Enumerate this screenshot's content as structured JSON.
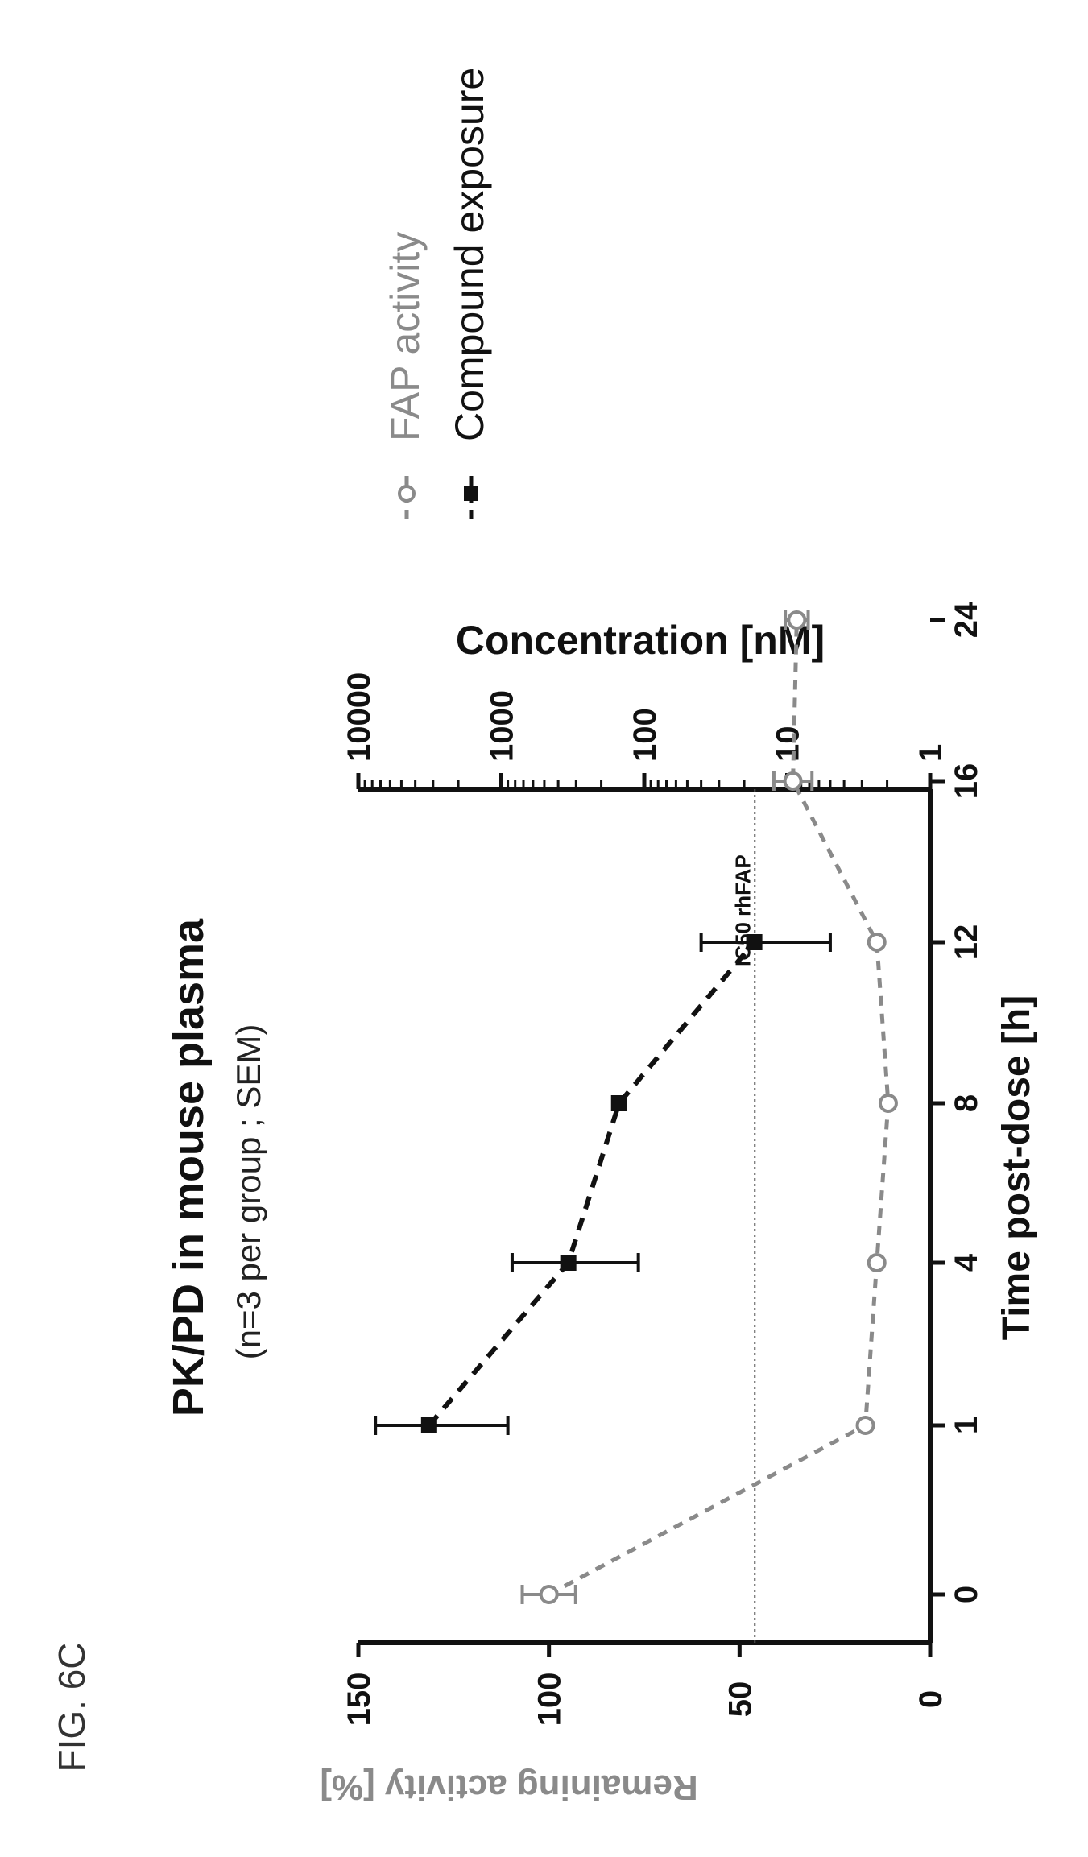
{
  "figure_label": "FIG. 6C",
  "chart_data": {
    "type": "line",
    "title": "PK/PD in mouse plasma",
    "subtitle": "(n=3 per group ; SEM)",
    "xlabel": "Time post-dose [h]",
    "ylabel_left": "Remaining activity [%]",
    "ylabel_right": "Concentration [nM]",
    "x": [
      "0",
      "1",
      "4",
      "8",
      "12",
      "16",
      "24"
    ],
    "x_axis_type": "categorical",
    "ylim_left": [
      0,
      150
    ],
    "yticks_left": [
      "0",
      "50",
      "100",
      "150"
    ],
    "ylim_right": [
      1,
      10000
    ],
    "yticks_right": [
      "1",
      "10",
      "100",
      "1000",
      "10000"
    ],
    "right_axis_scale": "log",
    "grid": false,
    "legend_position": "right",
    "series": [
      {
        "name": "FAP activity",
        "axis": "left",
        "color": "#8a8a8a",
        "marker": "open-circle",
        "x": [
          "0",
          "1",
          "4",
          "8",
          "12",
          "16",
          "24"
        ],
        "values": [
          100,
          17,
          14,
          11,
          14,
          36,
          35
        ],
        "error": [
          7,
          0,
          0,
          0,
          0,
          5,
          3
        ]
      },
      {
        "name": "Compound exposure",
        "axis": "right",
        "color": "#111111",
        "marker": "filled-square",
        "x": [
          "1",
          "4",
          "8",
          "12"
        ],
        "values": [
          3200,
          340,
          150,
          17
        ],
        "error_low": [
          2300,
          230,
          0,
          12
        ],
        "error_high": [
          4400,
          500,
          0,
          23
        ]
      }
    ],
    "annotations": [
      {
        "text": "IC50 rhFAP",
        "axis": "left",
        "y": 46,
        "style": "dotted-horizontal-line"
      }
    ]
  }
}
